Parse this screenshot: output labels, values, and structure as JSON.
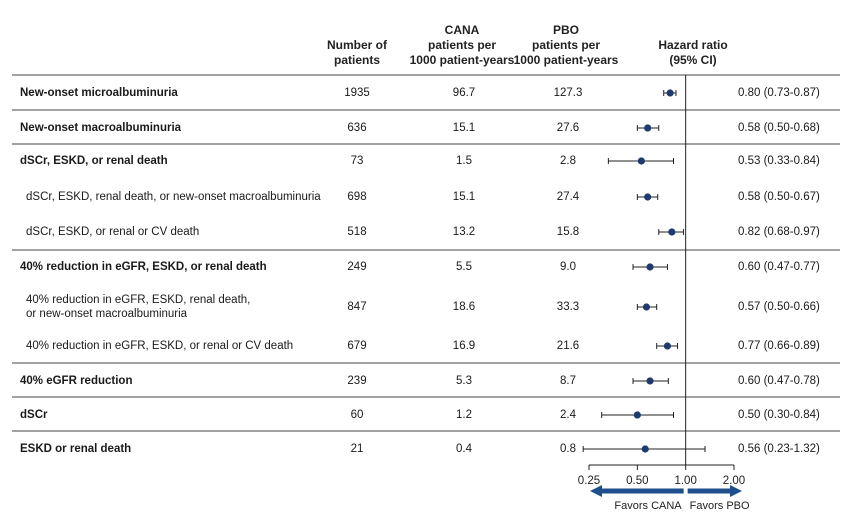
{
  "headers": {
    "n": [
      "Number of",
      "patients"
    ],
    "cana": [
      "CANA",
      "patients per",
      "1000 patient-years"
    ],
    "pbo": [
      "PBO",
      "patients per",
      "1000 patient-years"
    ],
    "hr": [
      "Hazard ratio",
      "(95% CI)"
    ]
  },
  "colors": {
    "marker": "#1f3a6e",
    "arrow": "#1f4e8c",
    "rule": "#444444",
    "line": "#222222"
  },
  "chart_data": {
    "type": "forest",
    "x_scale": "log",
    "xlim": [
      0.25,
      2.0
    ],
    "ticks": [
      0.25,
      0.5,
      1.0,
      2.0
    ],
    "tick_labels": [
      "0.25",
      "0.50",
      "1.00",
      "2.00"
    ],
    "reference_line": 1.0,
    "favors_left": "Favors CANA",
    "favors_right": "Favors PBO",
    "rows": [
      {
        "label": "New-onset microalbuminuria",
        "bold": true,
        "n": "1935",
        "cana": "96.7",
        "pbo": "127.3",
        "hr": 0.8,
        "lo": 0.73,
        "hi": 0.87,
        "ci_text": "0.80 (0.73-0.87)"
      },
      {
        "label": "New-onset macroalbuminuria",
        "bold": true,
        "n": "636",
        "cana": "15.1",
        "pbo": "27.6",
        "hr": 0.58,
        "lo": 0.5,
        "hi": 0.68,
        "ci_text": "0.58 (0.50-0.68)"
      },
      {
        "label": "dSCr, ESKD, or renal death",
        "bold": true,
        "n": "73",
        "cana": "1.5",
        "pbo": "2.8",
        "hr": 0.53,
        "lo": 0.33,
        "hi": 0.84,
        "ci_text": "0.53 (0.33-0.84)"
      },
      {
        "label": "dSCr, ESKD, renal death, or new-onset macroalbuminuria",
        "bold": false,
        "n": "698",
        "cana": "15.1",
        "pbo": "27.4",
        "hr": 0.58,
        "lo": 0.5,
        "hi": 0.67,
        "ci_text": "0.58 (0.50-0.67)"
      },
      {
        "label": "dSCr, ESKD, or renal or CV death",
        "bold": false,
        "n": "518",
        "cana": "13.2",
        "pbo": "15.8",
        "hr": 0.82,
        "lo": 0.68,
        "hi": 0.97,
        "ci_text": "0.82 (0.68-0.97)"
      },
      {
        "label": "40% reduction in eGFR, ESKD, or renal death",
        "bold": true,
        "n": "249",
        "cana": "5.5",
        "pbo": "9.0",
        "hr": 0.6,
        "lo": 0.47,
        "hi": 0.77,
        "ci_text": "0.60 (0.47-0.77)"
      },
      {
        "label": "40% reduction in eGFR, ESKD, renal death,",
        "label2": "or new-onset macroalbuminuria",
        "bold": false,
        "n": "847",
        "cana": "18.6",
        "pbo": "33.3",
        "hr": 0.57,
        "lo": 0.5,
        "hi": 0.66,
        "ci_text": "0.57 (0.50-0.66)"
      },
      {
        "label": "40% reduction in eGFR, ESKD, or renal or CV death",
        "bold": false,
        "n": "679",
        "cana": "16.9",
        "pbo": "21.6",
        "hr": 0.77,
        "lo": 0.66,
        "hi": 0.89,
        "ci_text": "0.77 (0.66-0.89)"
      },
      {
        "label": "40% eGFR reduction",
        "bold": true,
        "n": "239",
        "cana": "5.3",
        "pbo": "8.7",
        "hr": 0.6,
        "lo": 0.47,
        "hi": 0.78,
        "ci_text": "0.60 (0.47-0.78)"
      },
      {
        "label": "dSCr",
        "bold": true,
        "n": "60",
        "cana": "1.2",
        "pbo": "2.4",
        "hr": 0.5,
        "lo": 0.3,
        "hi": 0.84,
        "ci_text": "0.50 (0.30-0.84)"
      },
      {
        "label": "ESKD or renal death",
        "bold": true,
        "n": "21",
        "cana": "0.4",
        "pbo": "0.8",
        "hr": 0.56,
        "lo": 0.23,
        "hi": 1.32,
        "ci_text": "0.56 (0.23-1.32)"
      }
    ]
  }
}
